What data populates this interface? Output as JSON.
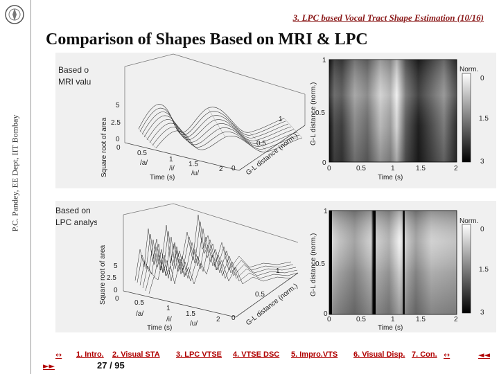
{
  "sidebar": {
    "vertical_text": "P.C. Pandey, EE Dept, IIT Bombay"
  },
  "header": {
    "section": "3. LPC based Vocal Tract Shape Estimation (10/16)",
    "title": "Comparison of Shapes Based on MRI & LPC"
  },
  "panels": [
    {
      "caption_line1": "Based o",
      "caption_line2": "MRI valu",
      "plot3d": {
        "zlabel": "Square root of area",
        "z_ticks": [
          "5",
          "2.5",
          "0"
        ],
        "x_ticks": [
          "0",
          "0.5",
          "1",
          "1.5",
          "2"
        ],
        "x_label": "Time (s)",
        "vowels": [
          "/a/",
          "/i/",
          "/u/"
        ],
        "y_ticks": [
          "0",
          "0.5",
          "1"
        ],
        "y_label": "G-L distance (norm.)"
      },
      "heatmap": {
        "ylabel": "G-L distance (norm.)",
        "y_ticks": [
          "1",
          "0.5",
          "0"
        ],
        "x_ticks": [
          "0",
          "0.5",
          "1",
          "1.5",
          "2"
        ],
        "xlabel": "Time (s)",
        "colorbar_title": "Norm.",
        "colorbar_ticks": [
          "0",
          "1.5",
          "3"
        ]
      }
    },
    {
      "caption_line1": "Based on",
      "caption_line2": "LPC analys",
      "plot3d": {
        "zlabel": "Square root of area",
        "z_ticks": [
          "5",
          "2.5",
          "0"
        ],
        "x_ticks": [
          "0",
          "0.5",
          "1",
          "1.5",
          "2"
        ],
        "x_label": "Time (s)",
        "vowels": [
          "/a/",
          "/i/",
          "/u/"
        ],
        "y_ticks": [
          "0",
          "0.5",
          "1"
        ],
        "y_label": "G-L distance (norm.)"
      },
      "heatmap": {
        "ylabel": "G-L distance (norm.)",
        "y_ticks": [
          "1",
          "0.5",
          "0"
        ],
        "x_ticks": [
          "0",
          "0.5",
          "1",
          "1.5",
          "2"
        ],
        "xlabel": "Time (s)",
        "colorbar_title": "Norm.",
        "colorbar_ticks": [
          "0",
          "1.5",
          "3"
        ]
      }
    }
  ],
  "nav": {
    "prev_symbol": "↔",
    "next_symbol": "►►",
    "end_symbol": "↔",
    "back_symbol": "◄◄",
    "links": [
      "1. Intro.",
      "2. Visual STA",
      "3. LPC VTSE",
      "4. VTSE DSC",
      "5. Impro.VTS",
      "6. Visual Disp.",
      "7. Con."
    ],
    "page": "27 / 95"
  }
}
